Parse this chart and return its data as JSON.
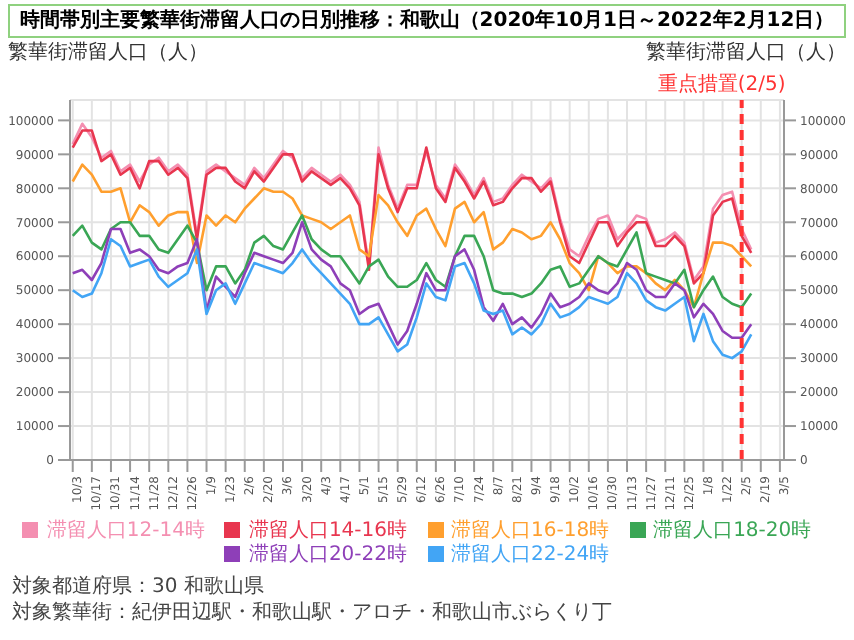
{
  "chart_data": {
    "type": "line",
    "title": "時間帯別主要繁華街滞留人口の日別推移：和歌山（2020年10月1日～2022年2月12日）",
    "ylabel": "繁華街滞留人口（人）",
    "y2label": "繁華街滞留人口（人）",
    "x": [
      "2020-10-03",
      "2020-10-10",
      "2020-10-17",
      "2020-10-24",
      "2020-10-31",
      "2020-11-07",
      "2020-11-14",
      "2020-11-21",
      "2020-11-28",
      "2020-12-05",
      "2020-12-12",
      "2020-12-19",
      "2020-12-26",
      "2021-01-02",
      "2021-01-09",
      "2021-01-16",
      "2021-01-23",
      "2021-01-30",
      "2021-02-06",
      "2021-02-13",
      "2021-02-20",
      "2021-02-27",
      "2021-03-06",
      "2021-03-13",
      "2021-03-20",
      "2021-03-27",
      "2021-04-03",
      "2021-04-10",
      "2021-04-17",
      "2021-04-24",
      "2021-05-01",
      "2021-05-08",
      "2021-05-15",
      "2021-05-22",
      "2021-05-29",
      "2021-06-05",
      "2021-06-12",
      "2021-06-19",
      "2021-06-26",
      "2021-07-03",
      "2021-07-10",
      "2021-07-17",
      "2021-07-24",
      "2021-07-31",
      "2021-08-07",
      "2021-08-14",
      "2021-08-21",
      "2021-08-28",
      "2021-09-04",
      "2021-09-11",
      "2021-09-18",
      "2021-09-25",
      "2021-10-02",
      "2021-10-09",
      "2021-10-16",
      "2021-10-23",
      "2021-10-30",
      "2021-11-06",
      "2021-11-13",
      "2021-11-20",
      "2021-11-27",
      "2021-12-04",
      "2021-12-11",
      "2021-12-18",
      "2021-12-25",
      "2022-01-01",
      "2022-01-08",
      "2022-01-15",
      "2022-01-22",
      "2022-01-29",
      "2022-02-05",
      "2022-02-12"
    ],
    "series": [
      {
        "name": "滞留人口12-14時",
        "color": "#f48fb1",
        "values": [
          93000,
          99000,
          95000,
          89000,
          91000,
          85000,
          87000,
          82000,
          87000,
          89000,
          85000,
          87000,
          84000,
          66000,
          85000,
          87000,
          85000,
          83000,
          81000,
          86000,
          83000,
          87000,
          91000,
          89000,
          83000,
          86000,
          84000,
          82000,
          84000,
          81000,
          76000,
          57000,
          92000,
          81000,
          74000,
          81000,
          81000,
          91000,
          81000,
          77000,
          87000,
          83000,
          78000,
          83000,
          76000,
          77000,
          81000,
          84000,
          82000,
          80000,
          83000,
          71000,
          62000,
          60000,
          66000,
          71000,
          72000,
          65000,
          68000,
          72000,
          71000,
          64000,
          65000,
          67000,
          64000,
          53000,
          57000,
          74000,
          78000,
          79000,
          68000,
          62000
        ]
      },
      {
        "name": "滞留人口14-16時",
        "color": "#e8364f",
        "values": [
          92000,
          97000,
          97000,
          88000,
          90000,
          84000,
          86000,
          80000,
          88000,
          88000,
          84000,
          86000,
          83000,
          65000,
          84000,
          86000,
          86000,
          82000,
          80000,
          85000,
          82000,
          86000,
          90000,
          90000,
          82000,
          85000,
          83000,
          81000,
          83000,
          80000,
          75000,
          56000,
          90000,
          80000,
          73000,
          80000,
          80000,
          92000,
          80000,
          76000,
          86000,
          82000,
          77000,
          82000,
          75000,
          76000,
          80000,
          83000,
          83000,
          79000,
          82000,
          70000,
          60000,
          58000,
          64000,
          70000,
          70000,
          63000,
          67000,
          70000,
          70000,
          63000,
          63000,
          66000,
          63000,
          52000,
          55000,
          72000,
          76000,
          77000,
          66000,
          61000
        ]
      },
      {
        "name": "滞留人口16-18時",
        "color": "#ff9f2e",
        "values": [
          82000,
          87000,
          84000,
          79000,
          79000,
          80000,
          70000,
          75000,
          73000,
          69000,
          72000,
          73000,
          73000,
          58000,
          72000,
          69000,
          72000,
          70000,
          74000,
          77000,
          80000,
          79000,
          79000,
          77000,
          72000,
          71000,
          70000,
          68000,
          70000,
          72000,
          62000,
          60000,
          78000,
          75000,
          70000,
          66000,
          72000,
          74000,
          68000,
          63000,
          74000,
          76000,
          70000,
          73000,
          62000,
          64000,
          68000,
          67000,
          65000,
          66000,
          70000,
          65000,
          58000,
          55000,
          50000,
          60000,
          58000,
          55000,
          57000,
          57000,
          55000,
          52000,
          50000,
          53000,
          50000,
          45000,
          55000,
          64000,
          64000,
          63000,
          60000,
          57000
        ]
      },
      {
        "name": "滞留人口18-20時",
        "color": "#3aa655",
        "values": [
          66000,
          69000,
          64000,
          62000,
          68000,
          70000,
          70000,
          66000,
          66000,
          62000,
          61000,
          65000,
          69000,
          64000,
          50000,
          57000,
          57000,
          52000,
          56000,
          64000,
          66000,
          63000,
          62000,
          67000,
          72000,
          65000,
          62000,
          60000,
          60000,
          56000,
          52000,
          57000,
          59000,
          54000,
          51000,
          51000,
          53000,
          58000,
          53000,
          51000,
          60000,
          66000,
          66000,
          60000,
          50000,
          49000,
          49000,
          48000,
          49000,
          52000,
          56000,
          57000,
          51000,
          52000,
          56000,
          60000,
          58000,
          57000,
          62000,
          67000,
          55000,
          54000,
          53000,
          52000,
          56000,
          45000,
          50000,
          54000,
          48000,
          46000,
          45000,
          49000
        ]
      },
      {
        "name": "滞留人口20-22時",
        "color": "#8e3fb8",
        "values": [
          55000,
          56000,
          53000,
          58000,
          68000,
          68000,
          61000,
          62000,
          60000,
          56000,
          55000,
          57000,
          58000,
          65000,
          44000,
          54000,
          51000,
          48000,
          55000,
          61000,
          60000,
          59000,
          58000,
          61000,
          70000,
          62000,
          59000,
          57000,
          52000,
          50000,
          43000,
          45000,
          46000,
          40000,
          34000,
          38000,
          46000,
          55000,
          50000,
          50000,
          60000,
          62000,
          56000,
          45000,
          41000,
          46000,
          40000,
          42000,
          39000,
          43000,
          49000,
          45000,
          46000,
          48000,
          52000,
          50000,
          49000,
          52000,
          58000,
          56000,
          50000,
          48000,
          48000,
          52000,
          50000,
          42000,
          46000,
          43000,
          38000,
          36000,
          36000,
          40000
        ]
      },
      {
        "name": "滞留人口22-24時",
        "color": "#42a5f5",
        "values": [
          50000,
          48000,
          49000,
          55000,
          65000,
          63000,
          57000,
          58000,
          59000,
          54000,
          51000,
          53000,
          55000,
          62000,
          43000,
          50000,
          52000,
          46000,
          52000,
          58000,
          57000,
          56000,
          55000,
          58000,
          62000,
          58000,
          55000,
          52000,
          49000,
          46000,
          40000,
          40000,
          42000,
          37000,
          32000,
          34000,
          42000,
          52000,
          48000,
          47000,
          57000,
          58000,
          52000,
          44000,
          43000,
          44000,
          37000,
          39000,
          37000,
          40000,
          46000,
          42000,
          43000,
          45000,
          48000,
          47000,
          46000,
          48000,
          55000,
          52000,
          47000,
          45000,
          44000,
          46000,
          48000,
          35000,
          43000,
          35000,
          31000,
          30000,
          32000,
          37000
        ]
      }
    ],
    "xlim": [
      "2020-10-01",
      "2022-03-08"
    ],
    "xticks": [
      {
        "value": "2020-10-03",
        "label": "10/3"
      },
      {
        "value": "2020-10-17",
        "label": "10/17"
      },
      {
        "value": "2020-10-31",
        "label": "10/31"
      },
      {
        "value": "2020-11-14",
        "label": "11/14"
      },
      {
        "value": "2020-11-28",
        "label": "11/28"
      },
      {
        "value": "2020-12-12",
        "label": "12/12"
      },
      {
        "value": "2020-12-26",
        "label": "12/26"
      },
      {
        "value": "2021-01-09",
        "label": "1/9"
      },
      {
        "value": "2021-01-23",
        "label": "1/23"
      },
      {
        "value": "2021-02-06",
        "label": "2/6"
      },
      {
        "value": "2021-02-20",
        "label": "2/20"
      },
      {
        "value": "2021-03-06",
        "label": "3/6"
      },
      {
        "value": "2021-03-20",
        "label": "3/20"
      },
      {
        "value": "2021-04-03",
        "label": "4/3"
      },
      {
        "value": "2021-04-17",
        "label": "4/17"
      },
      {
        "value": "2021-05-01",
        "label": "5/1"
      },
      {
        "value": "2021-05-15",
        "label": "5/15"
      },
      {
        "value": "2021-05-29",
        "label": "5/29"
      },
      {
        "value": "2021-06-12",
        "label": "6/12"
      },
      {
        "value": "2021-06-26",
        "label": "6/26"
      },
      {
        "value": "2021-07-10",
        "label": "7/10"
      },
      {
        "value": "2021-07-24",
        "label": "7/24"
      },
      {
        "value": "2021-08-07",
        "label": "8/7"
      },
      {
        "value": "2021-08-21",
        "label": "8/21"
      },
      {
        "value": "2021-09-04",
        "label": "9/4"
      },
      {
        "value": "2021-09-18",
        "label": "9/18"
      },
      {
        "value": "2021-10-02",
        "label": "10/2"
      },
      {
        "value": "2021-10-16",
        "label": "10/16"
      },
      {
        "value": "2021-10-30",
        "label": "10/30"
      },
      {
        "value": "2021-11-13",
        "label": "11/13"
      },
      {
        "value": "2021-11-27",
        "label": "11/27"
      },
      {
        "value": "2021-12-11",
        "label": "12/11"
      },
      {
        "value": "2021-12-25",
        "label": "12/25"
      },
      {
        "value": "2022-01-08",
        "label": "1/8"
      },
      {
        "value": "2022-01-22",
        "label": "1/22"
      },
      {
        "value": "2022-02-05",
        "label": "2/5"
      },
      {
        "value": "2022-02-19",
        "label": "2/19"
      },
      {
        "value": "2022-03-05",
        "label": "3/5"
      }
    ],
    "ylim": [
      0,
      106000
    ],
    "yticks": [
      0,
      10000,
      20000,
      30000,
      40000,
      50000,
      60000,
      70000,
      80000,
      90000,
      100000
    ],
    "y2lim": [
      0,
      106000
    ],
    "y2ticks": [
      0,
      10000,
      20000,
      30000,
      40000,
      50000,
      60000,
      70000,
      80000,
      90000,
      100000
    ],
    "ref_lines": [
      {
        "axis": "x",
        "value": "2022-02-05",
        "label": "重点措置(2/5)",
        "color": "#ff3333",
        "line_style": "dashed"
      }
    ],
    "grid": true,
    "legend": "bottom",
    "annotations": [
      "対象都道府県：30 和歌山県",
      "対象繁華街：紀伊田辺駅・和歌山駅・アロチ・和歌山市ぶらくり丁"
    ]
  }
}
